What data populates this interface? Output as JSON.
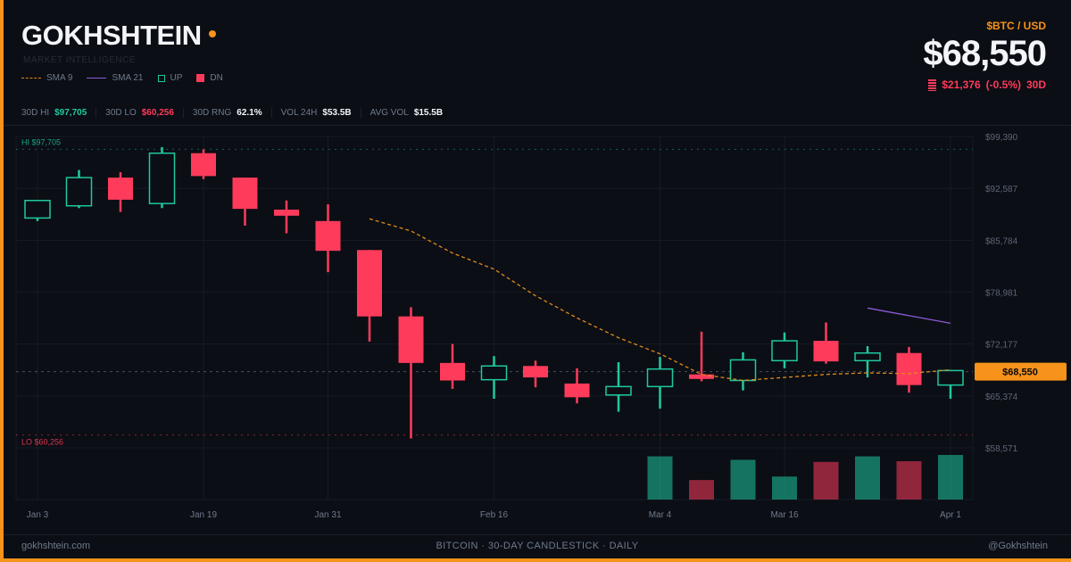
{
  "header": {
    "brand": "GOKHSHTEIN",
    "subtitle": "MARKET INTELLIGENCE",
    "legend": [
      {
        "label": "SMA 9",
        "kind": "sma9"
      },
      {
        "label": "SMA 21",
        "kind": "sma21"
      },
      {
        "label": "UP",
        "kind": "up"
      },
      {
        "label": "DN",
        "kind": "dn"
      }
    ]
  },
  "quote": {
    "pair": "$BTC / USD",
    "price": "$68,550",
    "change_abs": "$21,376",
    "change_pct": "(-0.5%)",
    "change_period": "30D"
  },
  "stats": [
    {
      "label": "30D HI",
      "value": "$97,705",
      "color": "#1fc8a0"
    },
    {
      "label": "30D LO",
      "value": "$60,256",
      "color": "#ff3b5c"
    },
    {
      "label": "30D RNG",
      "value": "62.1%",
      "color": "#f3f5f8"
    },
    {
      "label": "VOL 24H",
      "value": "$53.5B",
      "color": "#f3f5f8"
    },
    {
      "label": "AVG VOL",
      "value": "$15.5B",
      "color": "#f3f5f8"
    }
  ],
  "footer": {
    "left": "gokhshtein.com",
    "center": "BITCOIN · 30-DAY CANDLESTICK · DAILY",
    "right": "@Gokhshtein"
  },
  "colors": {
    "up": "#1fc8a0",
    "down": "#ff3b5c",
    "sma9": "#e08a1e",
    "sma21": "#8a5cd8",
    "accent": "#f7931a"
  },
  "chart_data": {
    "type": "candlestick",
    "ylim": [
      58571,
      99390
    ],
    "y_ticks": [
      "$99,390",
      "$92,587",
      "$85,784",
      "$78,981",
      "$72,177",
      "$65,374",
      "$58,571"
    ],
    "x_tick_labels": [
      {
        "label": "Jan 3",
        "index": 0
      },
      {
        "label": "Jan 19",
        "index": 4
      },
      {
        "label": "Jan 31",
        "index": 7
      },
      {
        "label": "Feb 16",
        "index": 11
      },
      {
        "label": "Mar 4",
        "index": 15
      },
      {
        "label": "Mar 16",
        "index": 18
      },
      {
        "label": "Apr 1",
        "index": 22
      }
    ],
    "hi_label": "HI $97,705",
    "hi_value": 97705,
    "lo_label": "LO $60,256",
    "lo_value": 60256,
    "current_label": "$68,550",
    "current_value": 68550,
    "candles": [
      {
        "o": 88700,
        "h": 90800,
        "l": 88300,
        "c": 91000,
        "vol": 0
      },
      {
        "o": 90300,
        "h": 95000,
        "l": 90000,
        "c": 94000,
        "vol": 0
      },
      {
        "o": 94000,
        "h": 94700,
        "l": 89500,
        "c": 91100,
        "vol": 0
      },
      {
        "o": 90600,
        "h": 98000,
        "l": 90000,
        "c": 97200,
        "vol": 0
      },
      {
        "o": 97200,
        "h": 97700,
        "l": 93800,
        "c": 94200,
        "vol": 0
      },
      {
        "o": 94000,
        "h": 94000,
        "l": 87700,
        "c": 89900,
        "vol": 0
      },
      {
        "o": 89800,
        "h": 91000,
        "l": 86700,
        "c": 89000,
        "vol": 0
      },
      {
        "o": 88300,
        "h": 90500,
        "l": 81600,
        "c": 84400,
        "vol": 0
      },
      {
        "o": 84500,
        "h": 84500,
        "l": 72500,
        "c": 75800,
        "vol": 0
      },
      {
        "o": 75800,
        "h": 77000,
        "l": 59800,
        "c": 69700,
        "vol": 0
      },
      {
        "o": 69700,
        "h": 72200,
        "l": 66300,
        "c": 67400,
        "vol": 0
      },
      {
        "o": 67500,
        "h": 70600,
        "l": 65000,
        "c": 69300,
        "vol": 0
      },
      {
        "o": 69300,
        "h": 70000,
        "l": 66500,
        "c": 67800,
        "vol": 0
      },
      {
        "o": 67000,
        "h": 69000,
        "l": 64400,
        "c": 65200,
        "vol": 0
      },
      {
        "o": 65500,
        "h": 69800,
        "l": 63300,
        "c": 66600,
        "vol": 0
      },
      {
        "o": 66600,
        "h": 70500,
        "l": 63700,
        "c": 68900,
        "vol": 62
      },
      {
        "o": 68200,
        "h": 73800,
        "l": 67300,
        "c": 67600,
        "vol": 28
      },
      {
        "o": 67400,
        "h": 71100,
        "l": 66100,
        "c": 70100,
        "vol": 57
      },
      {
        "o": 70000,
        "h": 73700,
        "l": 69000,
        "c": 72600,
        "vol": 33
      },
      {
        "o": 72600,
        "h": 75000,
        "l": 69600,
        "c": 69900,
        "vol": 54
      },
      {
        "o": 70000,
        "h": 71900,
        "l": 67800,
        "c": 71000,
        "vol": 62
      },
      {
        "o": 71000,
        "h": 71800,
        "l": 65800,
        "c": 66800,
        "vol": 55
      },
      {
        "o": 66800,
        "h": 68800,
        "l": 65000,
        "c": 68700,
        "vol": 64
      }
    ],
    "sma9": [
      {
        "i": 8,
        "v": 88600
      },
      {
        "i": 9,
        "v": 87000
      },
      {
        "i": 10,
        "v": 84100
      },
      {
        "i": 11,
        "v": 82000
      },
      {
        "i": 12,
        "v": 78500
      },
      {
        "i": 13,
        "v": 75600
      },
      {
        "i": 14,
        "v": 73000
      },
      {
        "i": 15,
        "v": 70900
      },
      {
        "i": 16,
        "v": 68200
      },
      {
        "i": 17,
        "v": 67400
      },
      {
        "i": 18,
        "v": 67800
      },
      {
        "i": 19,
        "v": 68200
      },
      {
        "i": 20,
        "v": 68400
      },
      {
        "i": 21,
        "v": 68300
      },
      {
        "i": 22,
        "v": 68800
      }
    ],
    "sma21": [
      {
        "i": 20,
        "v": 76900
      },
      {
        "i": 22,
        "v": 74900
      }
    ]
  }
}
